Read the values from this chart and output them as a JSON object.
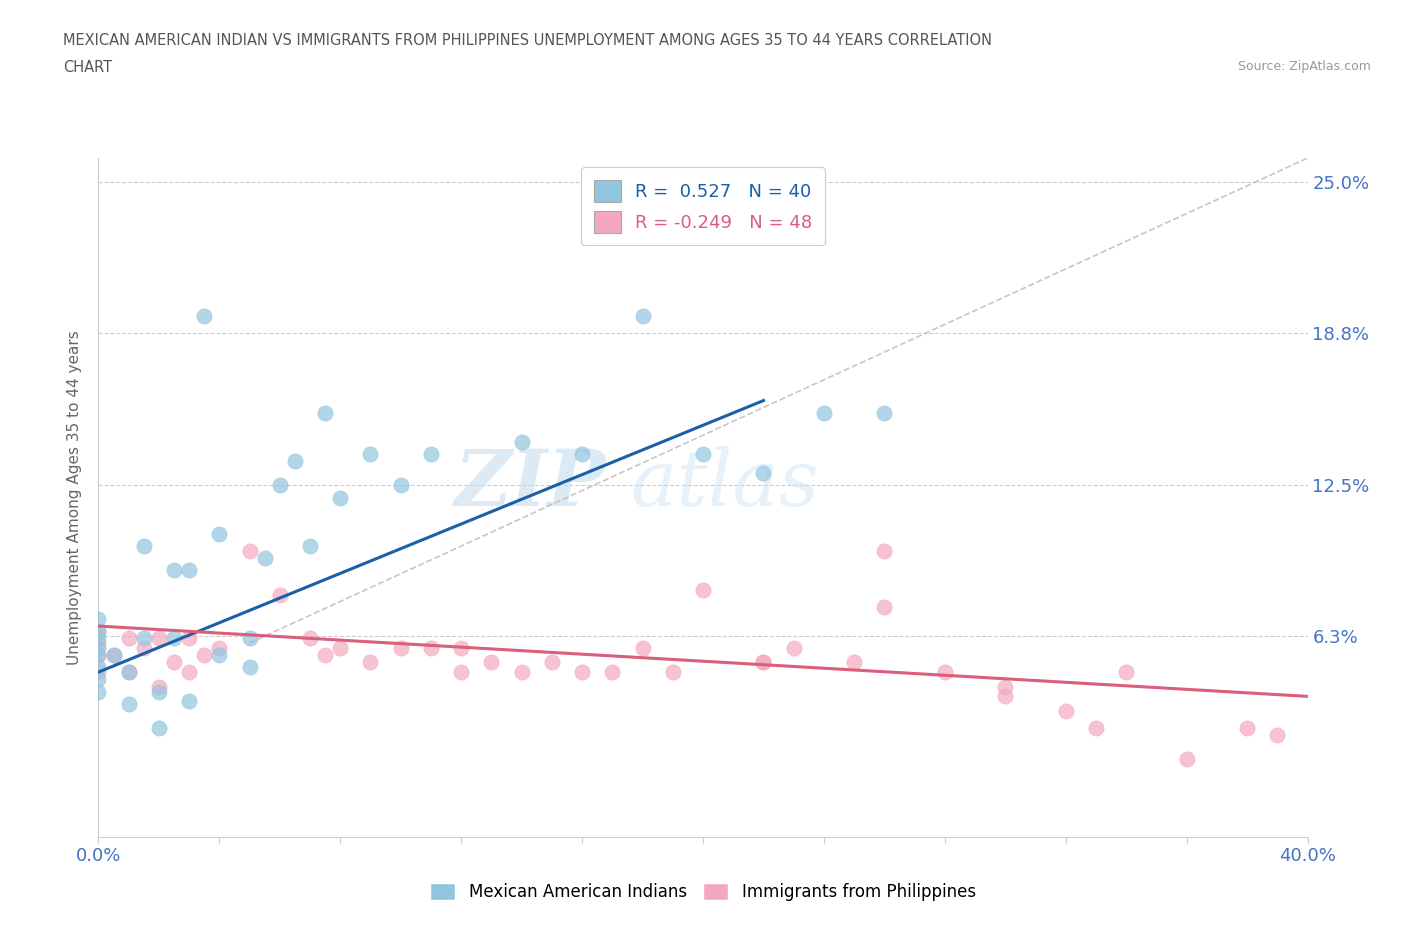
{
  "title_line1": "MEXICAN AMERICAN INDIAN VS IMMIGRANTS FROM PHILIPPINES UNEMPLOYMENT AMONG AGES 35 TO 44 YEARS CORRELATION",
  "title_line2": "CHART",
  "source": "Source: ZipAtlas.com",
  "ylabel": "Unemployment Among Ages 35 to 44 years",
  "xmin": 0.0,
  "xmax": 0.4,
  "ymin": -0.02,
  "ymax": 0.26,
  "yticks": [
    0.0,
    0.063,
    0.125,
    0.188,
    0.25
  ],
  "ytick_labels": [
    "",
    "6.3%",
    "12.5%",
    "18.8%",
    "25.0%"
  ],
  "legend_blue_r": "0.527",
  "legend_blue_n": "40",
  "legend_pink_r": "-0.249",
  "legend_pink_n": "48",
  "blue_color": "#92c5de",
  "pink_color": "#f4a8c0",
  "blue_line_color": "#1a5fa8",
  "pink_line_color": "#d95f7a",
  "dashed_line_color": "#b8b8b8",
  "watermark_zip": "ZIP",
  "watermark_atlas": "atlas",
  "blue_scatter_x": [
    0.0,
    0.0,
    0.0,
    0.0,
    0.0,
    0.0,
    0.0,
    0.0,
    0.005,
    0.01,
    0.01,
    0.015,
    0.015,
    0.02,
    0.02,
    0.025,
    0.025,
    0.03,
    0.03,
    0.035,
    0.04,
    0.04,
    0.05,
    0.05,
    0.055,
    0.06,
    0.065,
    0.07,
    0.075,
    0.08,
    0.09,
    0.1,
    0.11,
    0.14,
    0.16,
    0.18,
    0.2,
    0.22,
    0.24,
    0.26
  ],
  "blue_scatter_y": [
    0.04,
    0.045,
    0.05,
    0.055,
    0.058,
    0.062,
    0.065,
    0.07,
    0.055,
    0.035,
    0.048,
    0.062,
    0.1,
    0.025,
    0.04,
    0.062,
    0.09,
    0.036,
    0.09,
    0.195,
    0.055,
    0.105,
    0.05,
    0.062,
    0.095,
    0.125,
    0.135,
    0.1,
    0.155,
    0.12,
    0.138,
    0.125,
    0.138,
    0.143,
    0.138,
    0.195,
    0.138,
    0.13,
    0.155,
    0.155
  ],
  "pink_scatter_x": [
    0.0,
    0.0,
    0.0,
    0.0,
    0.005,
    0.01,
    0.01,
    0.015,
    0.02,
    0.02,
    0.025,
    0.03,
    0.03,
    0.035,
    0.04,
    0.05,
    0.06,
    0.07,
    0.075,
    0.08,
    0.09,
    0.1,
    0.11,
    0.12,
    0.13,
    0.14,
    0.15,
    0.16,
    0.17,
    0.18,
    0.19,
    0.2,
    0.22,
    0.23,
    0.25,
    0.26,
    0.28,
    0.3,
    0.32,
    0.33,
    0.34,
    0.36,
    0.38,
    0.39,
    0.26,
    0.3,
    0.22,
    0.12
  ],
  "pink_scatter_y": [
    0.048,
    0.055,
    0.06,
    0.065,
    0.055,
    0.048,
    0.062,
    0.058,
    0.042,
    0.062,
    0.052,
    0.048,
    0.062,
    0.055,
    0.058,
    0.098,
    0.08,
    0.062,
    0.055,
    0.058,
    0.052,
    0.058,
    0.058,
    0.058,
    0.052,
    0.048,
    0.052,
    0.048,
    0.048,
    0.058,
    0.048,
    0.082,
    0.052,
    0.058,
    0.052,
    0.098,
    0.048,
    0.042,
    0.032,
    0.025,
    0.048,
    0.012,
    0.025,
    0.022,
    0.075,
    0.038,
    0.052,
    0.048
  ],
  "blue_line_x0": 0.0,
  "blue_line_y0": 0.048,
  "blue_line_x1": 0.22,
  "blue_line_y1": 0.16,
  "pink_line_x0": 0.0,
  "pink_line_y0": 0.067,
  "pink_line_x1": 0.4,
  "pink_line_y1": 0.038
}
